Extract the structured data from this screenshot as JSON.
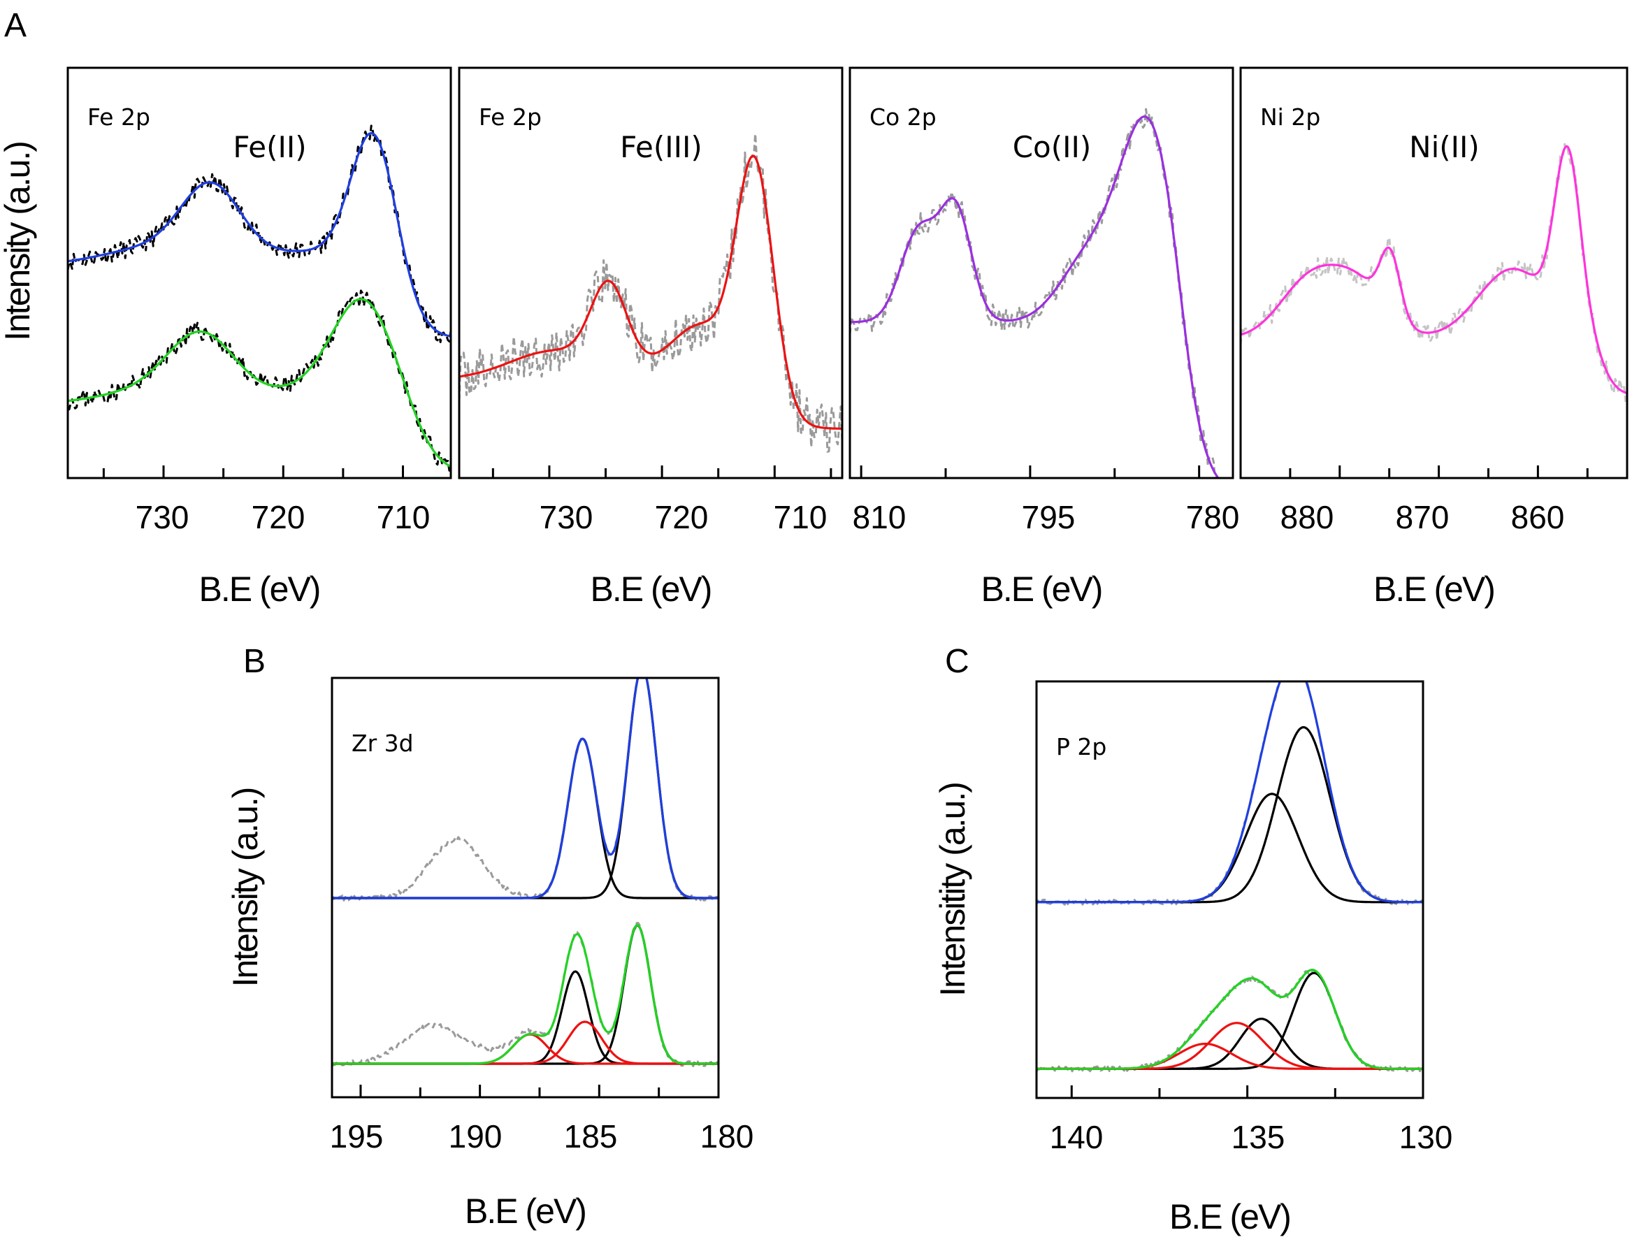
{
  "figure_labels": {
    "A": "A",
    "B": "B",
    "C": "C"
  },
  "colors": {
    "blue": "#1f3fe0",
    "green": "#22d322",
    "red": "#ee1111",
    "purple": "#9a2fe0",
    "magenta": "#ff33dd",
    "black": "#000000",
    "raw_gray": "#9a9a9a",
    "raw_lightgray": "#c4c4c4"
  },
  "chart_data": [
    {
      "id": "A1",
      "type": "line",
      "corner_label": "Fe 2p",
      "title": "Fe(II)",
      "xlabel": "B.E (eV)",
      "ylabel": "Intensity (a.u.)",
      "xlim": [
        738,
        706
      ],
      "ylim": [
        0,
        1
      ],
      "xticks": [
        730,
        720,
        710
      ],
      "series": [
        {
          "name": "raw-top",
          "style": "raw",
          "color": "#000000",
          "base": 0.52,
          "noise": 0.022,
          "seed": 11,
          "peaks": [
            [
              712.4,
              0.34,
              1.9
            ],
            [
              726.0,
              0.18,
              2.5
            ],
            [
              731.0,
              0.04,
              4.0
            ],
            [
              718.0,
              0.03,
              3.5
            ]
          ],
          "sigmoid": {
            "center": 710.5,
            "amp": 0.18,
            "width": 1.2
          }
        },
        {
          "name": "fit-top",
          "style": "fit",
          "color": "#1f3fe0",
          "base": 0.52,
          "noise": 0,
          "seed": 0,
          "peaks": [
            [
              712.4,
              0.34,
              1.9
            ],
            [
              726.0,
              0.18,
              2.5
            ],
            [
              731.0,
              0.04,
              4.0
            ],
            [
              718.0,
              0.03,
              3.5
            ]
          ],
          "sigmoid": {
            "center": 710.5,
            "amp": 0.18,
            "width": 1.2
          }
        },
        {
          "name": "raw-bottom",
          "style": "raw",
          "color": "#000000",
          "base": 0.18,
          "noise": 0.022,
          "seed": 23,
          "peaks": [
            [
              713.3,
              0.25,
              2.6
            ],
            [
              726.8,
              0.16,
              2.8
            ],
            [
              731.5,
              0.03,
              4.0
            ],
            [
              718.5,
              0.03,
              3.5
            ]
          ],
          "sigmoid": {
            "center": 709.0,
            "amp": 0.17,
            "width": 1.2
          }
        },
        {
          "name": "fit-bottom",
          "style": "fit",
          "color": "#22d322",
          "base": 0.18,
          "noise": 0,
          "seed": 0,
          "peaks": [
            [
              713.3,
              0.25,
              2.6
            ],
            [
              726.8,
              0.16,
              2.8
            ],
            [
              731.5,
              0.03,
              4.0
            ],
            [
              718.5,
              0.03,
              3.5
            ]
          ],
          "sigmoid": {
            "center": 709.0,
            "amp": 0.17,
            "width": 1.2
          }
        }
      ]
    },
    {
      "id": "A2",
      "type": "line",
      "corner_label": "Fe 2p",
      "title": "Fe(III)",
      "xlabel": "B.E (eV)",
      "ylabel": "",
      "xlim": [
        738,
        704
      ],
      "ylim": [
        0,
        1
      ],
      "xticks": [
        730,
        720,
        710
      ],
      "series": [
        {
          "name": "raw",
          "style": "raw",
          "color": "#9a9a9a",
          "base": 0.24,
          "noise": 0.06,
          "seed": 37,
          "peaks": [
            [
              711.8,
              0.53,
              1.6
            ],
            [
              724.7,
              0.2,
              1.6
            ],
            [
              729.5,
              0.07,
              4.0
            ],
            [
              716.5,
              0.12,
              2.5
            ],
            [
              720.0,
              0.02,
              3.0
            ]
          ],
          "sigmoid": {
            "center": 709.3,
            "amp": 0.12,
            "width": 0.9
          }
        },
        {
          "name": "fit",
          "style": "fit",
          "color": "#ee1111",
          "base": 0.24,
          "noise": 0,
          "seed": 0,
          "peaks": [
            [
              711.8,
              0.53,
              1.6
            ],
            [
              724.7,
              0.2,
              1.6
            ],
            [
              729.5,
              0.07,
              4.0
            ],
            [
              716.5,
              0.12,
              2.5
            ],
            [
              720.0,
              0.02,
              3.0
            ]
          ],
          "sigmoid": {
            "center": 709.3,
            "amp": 0.12,
            "width": 0.9
          }
        }
      ]
    },
    {
      "id": "A3",
      "type": "line",
      "corner_label": "Co 2p",
      "title": "Co(II)",
      "xlabel": "B.E (eV)",
      "ylabel": "",
      "xlim": [
        811,
        777
      ],
      "ylim": [
        0,
        1
      ],
      "xticks": [
        810,
        795,
        780
      ],
      "series": [
        {
          "name": "raw",
          "style": "raw",
          "color": "#9a9a9a",
          "base": 0.38,
          "noise": 0.03,
          "seed": 51,
          "peaks": [
            [
              784.5,
              0.5,
              2.6
            ],
            [
              801.6,
              0.27,
              1.4
            ],
            [
              804.9,
              0.22,
              1.6
            ],
            [
              790.0,
              0.14,
              2.5
            ]
          ],
          "sigmoid": {
            "center": 781.6,
            "amp": 0.42,
            "width": 0.9
          }
        },
        {
          "name": "fit",
          "style": "fit",
          "color": "#9a2fe0",
          "base": 0.38,
          "noise": 0,
          "seed": 0,
          "peaks": [
            [
              784.5,
              0.5,
              2.6
            ],
            [
              801.6,
              0.27,
              1.4
            ],
            [
              804.9,
              0.22,
              1.6
            ],
            [
              790.0,
              0.14,
              2.5
            ]
          ],
          "sigmoid": {
            "center": 781.6,
            "amp": 0.42,
            "width": 0.9
          }
        }
      ]
    },
    {
      "id": "A4",
      "type": "line",
      "corner_label": "Ni 2p",
      "title": "Ni(II)",
      "xlabel": "B.E (eV)",
      "ylabel": "",
      "xlim": [
        890,
        851
      ],
      "ylim": [
        0,
        1
      ],
      "xticks": [
        880,
        870,
        860
      ],
      "series": [
        {
          "name": "raw",
          "style": "raw",
          "color": "#c4c4c4",
          "base": 0.34,
          "noise": 0.025,
          "seed": 67,
          "peaks": [
            [
              857.0,
              0.42,
              1.3
            ],
            [
              874.9,
              0.15,
              1.0
            ],
            [
              878.0,
              0.12,
              2.8
            ],
            [
              883.0,
              0.14,
              3.0
            ],
            [
              862.5,
              0.17,
              3.5
            ]
          ],
          "sigmoid": {
            "center": 853.5,
            "amp": 0.14,
            "width": 0.8
          }
        },
        {
          "name": "fit",
          "style": "fit",
          "color": "#ff33dd",
          "base": 0.34,
          "noise": 0,
          "seed": 0,
          "peaks": [
            [
              857.0,
              0.42,
              1.3
            ],
            [
              874.9,
              0.15,
              1.0
            ],
            [
              878.0,
              0.12,
              2.8
            ],
            [
              883.0,
              0.14,
              3.0
            ],
            [
              862.5,
              0.17,
              3.5
            ]
          ],
          "sigmoid": {
            "center": 853.5,
            "amp": 0.14,
            "width": 0.8
          }
        }
      ]
    },
    {
      "id": "B",
      "type": "line",
      "corner_label": "Zr 3d",
      "title": "",
      "xlabel": "B.E (eV)",
      "ylabel": "Intensity (a.u.)",
      "xlim": [
        196.2,
        180
      ],
      "ylim": [
        0,
        1
      ],
      "xticks": [
        195,
        190,
        185,
        180
      ],
      "series": [
        {
          "name": "raw-top",
          "style": "raw",
          "color": "#9a9a9a",
          "base": 0.475,
          "noise": 0.006,
          "seed": 81,
          "peaks": [
            [
              183.2,
              0.55,
              0.6
            ],
            [
              185.7,
              0.38,
              0.6
            ],
            [
              191.0,
              0.14,
              1.1
            ]
          ]
        },
        {
          "name": "comp-top-1",
          "style": "fit",
          "color": "#000000",
          "base": 0.475,
          "noise": 0,
          "seed": 0,
          "peaks": [
            [
              183.2,
              0.55,
              0.6
            ]
          ]
        },
        {
          "name": "comp-top-2",
          "style": "fit",
          "color": "#000000",
          "base": 0.475,
          "noise": 0,
          "seed": 0,
          "peaks": [
            [
              185.7,
              0.38,
              0.6
            ]
          ]
        },
        {
          "name": "fit-top",
          "style": "fit",
          "color": "#1f3fe0",
          "base": 0.475,
          "noise": 0,
          "seed": 0,
          "peaks": [
            [
              183.2,
              0.55,
              0.6
            ],
            [
              185.7,
              0.38,
              0.6
            ]
          ]
        },
        {
          "name": "raw-bottom",
          "style": "raw",
          "color": "#9a9a9a",
          "base": 0.08,
          "noise": 0.006,
          "seed": 93,
          "peaks": [
            [
              183.4,
              0.33,
              0.55
            ],
            [
              186.0,
              0.22,
              0.55
            ],
            [
              185.6,
              0.1,
              0.7
            ],
            [
              187.9,
              0.07,
              0.7
            ],
            [
              192.0,
              0.09,
              1.2
            ],
            [
              189.5,
              0.02,
              1.0
            ]
          ]
        },
        {
          "name": "comp-bottom-1",
          "style": "fit",
          "color": "#000000",
          "base": 0.08,
          "noise": 0,
          "seed": 0,
          "peaks": [
            [
              183.4,
              0.33,
              0.55
            ]
          ]
        },
        {
          "name": "comp-bottom-2",
          "style": "fit",
          "color": "#000000",
          "base": 0.08,
          "noise": 0,
          "seed": 0,
          "peaks": [
            [
              186.0,
              0.22,
              0.55
            ]
          ]
        },
        {
          "name": "comp-bottom-3",
          "style": "fit",
          "color": "#ee1111",
          "base": 0.08,
          "noise": 0,
          "seed": 0,
          "peaks": [
            [
              185.6,
              0.1,
              0.7
            ]
          ]
        },
        {
          "name": "comp-bottom-4",
          "style": "fit",
          "color": "#ee1111",
          "base": 0.08,
          "noise": 0,
          "seed": 0,
          "peaks": [
            [
              187.9,
              0.07,
              0.7
            ]
          ]
        },
        {
          "name": "fit-bottom",
          "style": "fit",
          "color": "#22d322",
          "base": 0.08,
          "noise": 0,
          "seed": 0,
          "peaks": [
            [
              183.4,
              0.33,
              0.55
            ],
            [
              186.0,
              0.22,
              0.55
            ],
            [
              185.6,
              0.1,
              0.7
            ],
            [
              187.9,
              0.07,
              0.7
            ]
          ]
        }
      ]
    },
    {
      "id": "C",
      "type": "line",
      "corner_label": "P 2p",
      "title": "",
      "xlabel": "B.E (eV)",
      "ylabel": "Intensitity (a.u.)",
      "xlim": [
        141,
        130
      ],
      "ylim": [
        0,
        1
      ],
      "xticks": [
        140,
        135,
        130
      ],
      "series": [
        {
          "name": "raw-top",
          "style": "raw",
          "color": "#9a9a9a",
          "base": 0.47,
          "noise": 0.006,
          "seed": 105,
          "peaks": [
            [
              133.4,
              0.42,
              0.75
            ],
            [
              134.3,
              0.26,
              0.75
            ]
          ]
        },
        {
          "name": "comp-top-1",
          "style": "fit",
          "color": "#000000",
          "base": 0.47,
          "noise": 0,
          "seed": 0,
          "peaks": [
            [
              133.4,
              0.42,
              0.75
            ]
          ]
        },
        {
          "name": "comp-top-2",
          "style": "fit",
          "color": "#000000",
          "base": 0.47,
          "noise": 0,
          "seed": 0,
          "peaks": [
            [
              134.3,
              0.26,
              0.75
            ]
          ]
        },
        {
          "name": "fit-top",
          "style": "fit",
          "color": "#1f3fe0",
          "base": 0.47,
          "noise": 0,
          "seed": 0,
          "peaks": [
            [
              133.4,
              0.42,
              0.75
            ],
            [
              134.3,
              0.26,
              0.75
            ]
          ]
        },
        {
          "name": "raw-bottom",
          "style": "raw",
          "color": "#9a9a9a",
          "base": 0.07,
          "noise": 0.006,
          "seed": 117,
          "peaks": [
            [
              133.1,
              0.23,
              0.6
            ],
            [
              134.6,
              0.12,
              0.6
            ],
            [
              135.3,
              0.11,
              0.75
            ],
            [
              136.2,
              0.06,
              0.75
            ]
          ]
        },
        {
          "name": "comp-bottom-1",
          "style": "fit",
          "color": "#000000",
          "base": 0.07,
          "noise": 0,
          "seed": 0,
          "peaks": [
            [
              133.1,
              0.23,
              0.6
            ]
          ]
        },
        {
          "name": "comp-bottom-2",
          "style": "fit",
          "color": "#000000",
          "base": 0.07,
          "noise": 0,
          "seed": 0,
          "peaks": [
            [
              134.6,
              0.12,
              0.6
            ]
          ]
        },
        {
          "name": "comp-bottom-3",
          "style": "fit",
          "color": "#ee1111",
          "base": 0.07,
          "noise": 0,
          "seed": 0,
          "peaks": [
            [
              135.3,
              0.11,
              0.75
            ]
          ]
        },
        {
          "name": "comp-bottom-4",
          "style": "fit",
          "color": "#ee1111",
          "base": 0.07,
          "noise": 0,
          "seed": 0,
          "peaks": [
            [
              136.2,
              0.06,
              0.75
            ]
          ]
        },
        {
          "name": "fit-bottom",
          "style": "fit",
          "color": "#22d322",
          "base": 0.07,
          "noise": 0,
          "seed": 0,
          "peaks": [
            [
              133.1,
              0.23,
              0.6
            ],
            [
              134.6,
              0.12,
              0.6
            ],
            [
              135.3,
              0.11,
              0.75
            ],
            [
              136.2,
              0.06,
              0.75
            ]
          ]
        }
      ]
    }
  ]
}
